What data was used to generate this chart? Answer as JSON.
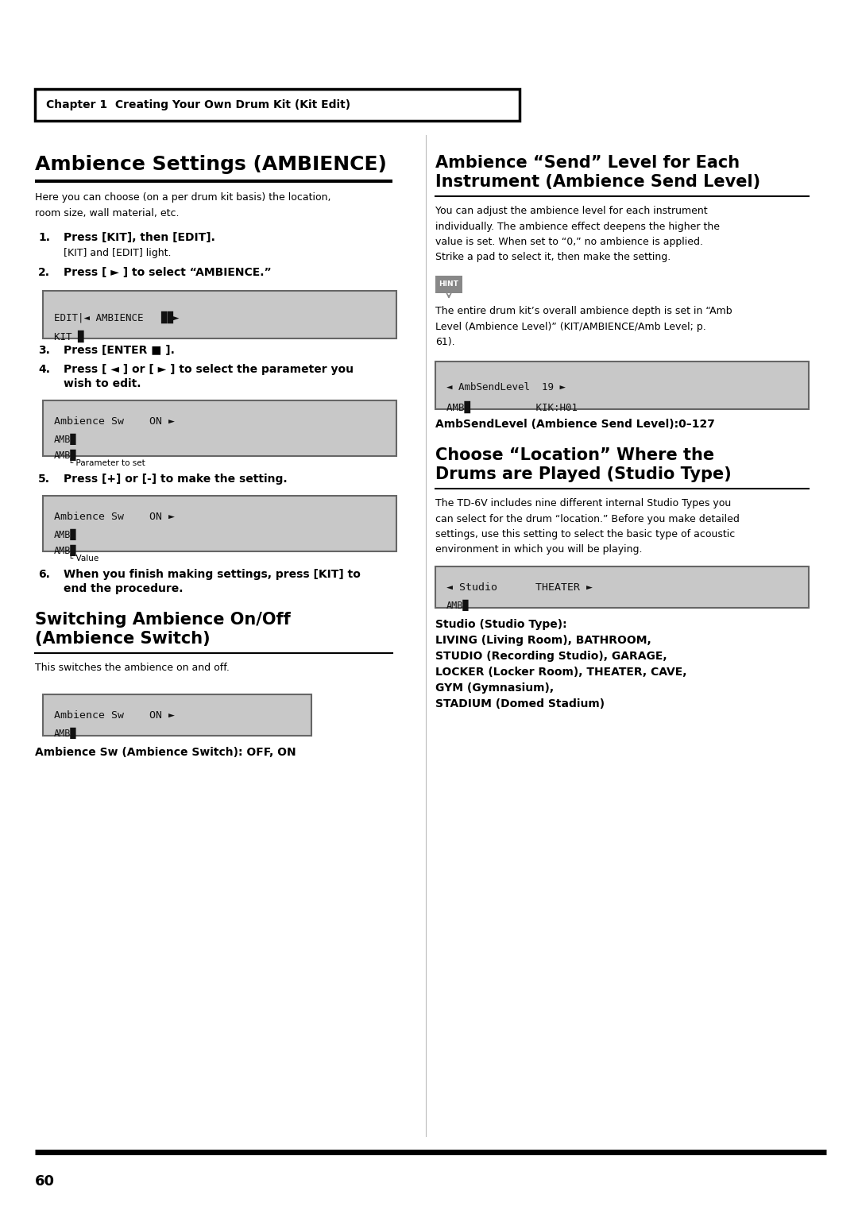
{
  "page_bg": "#ffffff",
  "page_number": "60",
  "chapter_box_text": "Chapter 1  Creating Your Own Drum Kit (Kit Edit)",
  "section1_title": "Ambience Settings (AMBIENCE)",
  "section1_body": "Here you can choose (on a per drum kit basis) the location,\nroom size, wall material, etc.",
  "step1_bold": "Press [KIT], then [EDIT].",
  "step1_sub": "[KIT] and [EDIT] light.",
  "step2_bold": "Press [ ► ] to select “AMBIENCE.”",
  "step3_bold": "Press [ENTER ■ ].",
  "step4_bold": "Press [ ◄ ] or [ ► ] to select the parameter you",
  "step4_bold2": "wish to edit.",
  "step5_bold": "Press [+] or [-] to make the setting.",
  "step6_bold": "When you finish making settings, press [KIT] to",
  "step6_bold2": "end the procedure.",
  "lcd1_row1": "KIT █",
  "lcd1_row2": "EDIT|◄ AMBIENCE   ██►",
  "lcd2_row1": "AMB█",
  "lcd2_row2": "AMB█",
  "lcd2_row3": "Ambience Sw    ON ►",
  "lcd2_ann": "└ Parameter to set",
  "lcd3_row1": "AMB█",
  "lcd3_row2": "AMB█",
  "lcd3_row3": "Ambience Sw    ON ►",
  "lcd3_ann": "└ Value",
  "section2_title": "Switching Ambience On/Off\n(Ambience Switch)",
  "section2_body": "This switches the ambience on and off.",
  "lcd4_row1": "AMB█",
  "lcd4_row2": "Ambience Sw    ON ►",
  "section2_caption": "Ambience Sw (Ambience Switch): OFF, ON",
  "r_section1_title": "Ambience “Send” Level for Each\nInstrument (Ambience Send Level)",
  "r_section1_body": "You can adjust the ambience level for each instrument\nindividually. The ambience effect deepens the higher the\nvalue is set. When set to “0,” no ambience is applied.\nStrike a pad to select it, then make the setting.",
  "hint_label": "HINT",
  "hint_body": "The entire drum kit’s overall ambience depth is set in “Amb\nLevel (Ambience Level)” (KIT/AMBIENCE/Amb Level; p.\n61).",
  "lcd5_row1": "AMB█           KIK:H01",
  "lcd5_row2": "◄ AmbSendLevel  19 ►",
  "r_caption1": "AmbSendLevel (Ambience Send Level):0–127",
  "r_section2_title": "Choose “Location” Where the\nDrums are Played (Studio Type)",
  "r_section2_body": "The TD-6V includes nine different internal Studio Types you\ncan select for the drum “location.” Before you make detailed\nsettings, use this setting to select the basic type of acoustic\nenvironment in which you will be playing.",
  "lcd6_row1": "AMB█",
  "lcd6_row2": "◄ Studio      THEATER ►",
  "studio_line1": "Studio (Studio Type):",
  "studio_rest": "LIVING (Living Room), BATHROOM,\nSTUDIO (Recording Studio), GARAGE,\nLOCKER (Locker Room), THEATER, CAVE,\nGYM (Gymnasium),\nSTADIUM (Domed Stadium)"
}
